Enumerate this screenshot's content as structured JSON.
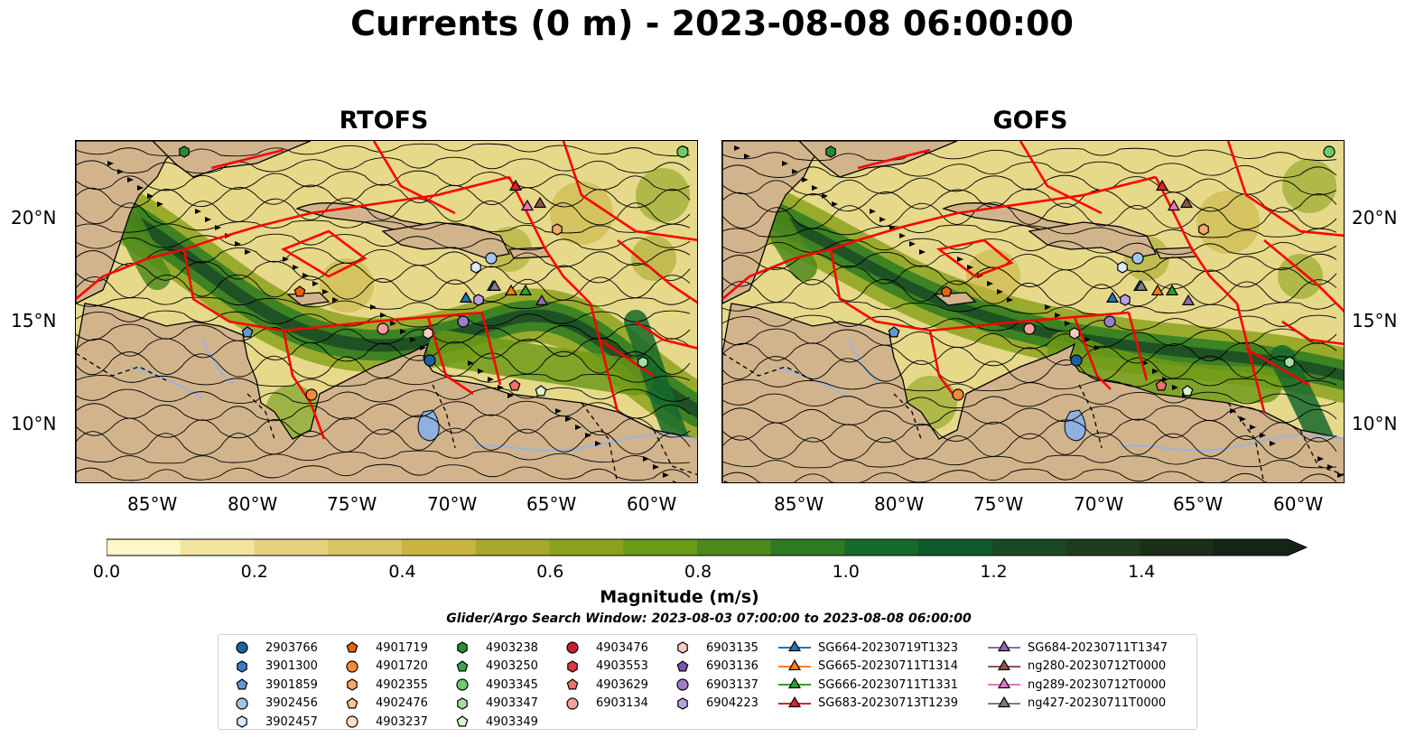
{
  "title": "Currents (0 m) - 2023-08-08 06:00:00",
  "panels": [
    {
      "name": "RTOFS"
    },
    {
      "name": "GOFS"
    }
  ],
  "lat_labels": [
    "20°N",
    "15°N",
    "10°N"
  ],
  "lon_labels": [
    "85°W",
    "80°W",
    "75°W",
    "70°W",
    "65°W",
    "60°W"
  ],
  "colorbar": {
    "label": "Magnitude (m/s)",
    "ticks": [
      "0.0",
      "0.2",
      "0.4",
      "0.6",
      "0.8",
      "1.0",
      "1.2",
      "1.4"
    ],
    "colors": [
      "#fdf6c7",
      "#f3e6a0",
      "#e7d27e",
      "#dbc462",
      "#c9b442",
      "#a9a82b",
      "#8ba21c",
      "#6c9a17",
      "#4c8a1c",
      "#2d7a22",
      "#15692d",
      "#0f5a2c",
      "#194a24",
      "#1f3c1e",
      "#1b2f18",
      "#152515"
    ]
  },
  "colors": {
    "land": "#d2b48c",
    "ocean_base": "#e6d98a",
    "eez": "#ff0000",
    "lake": "#8fb0e0"
  },
  "search_window": "Glider/Argo Search Window: 2023-08-03 07:00:00 to 2023-08-08 06:00:00",
  "legend": [
    [
      {
        "label": "2903766",
        "marker": "circle",
        "color": "#1f5fa8"
      },
      {
        "label": "3901300",
        "marker": "hexagon",
        "color": "#3a7fc0"
      },
      {
        "label": "3901859",
        "marker": "pentagon",
        "color": "#5d9bd5"
      },
      {
        "label": "3902456",
        "marker": "circle",
        "color": "#9dc7ee"
      },
      {
        "label": "3902457",
        "marker": "hexagon",
        "color": "#dbe9f8"
      }
    ],
    [
      {
        "label": "4901719",
        "marker": "pentagon",
        "color": "#e8630c"
      },
      {
        "label": "4901720",
        "marker": "circle",
        "color": "#f58b3a"
      },
      {
        "label": "4902355",
        "marker": "hexagon",
        "color": "#f9a867"
      },
      {
        "label": "4902476",
        "marker": "pentagon",
        "color": "#fbc594"
      },
      {
        "label": "4903237",
        "marker": "circle",
        "color": "#fde0c2"
      }
    ],
    [
      {
        "label": "4903238",
        "marker": "hexagon",
        "color": "#2b8a3a"
      },
      {
        "label": "4903250",
        "marker": "pentagon",
        "color": "#3fa34d"
      },
      {
        "label": "4903345",
        "marker": "circle",
        "color": "#6ccb6c"
      },
      {
        "label": "4903347",
        "marker": "hexagon",
        "color": "#a6e0a0"
      },
      {
        "label": "4903349",
        "marker": "pentagon",
        "color": "#d7f3cf"
      }
    ],
    [
      {
        "label": "4903476",
        "marker": "circle",
        "color": "#c8202a"
      },
      {
        "label": "4903553",
        "marker": "hexagon",
        "color": "#de3a3a"
      },
      {
        "label": "4903629",
        "marker": "pentagon",
        "color": "#f07070"
      },
      {
        "label": "6903134",
        "marker": "circle",
        "color": "#f79f9f"
      }
    ],
    [
      {
        "label": "6903135",
        "marker": "hexagon",
        "color": "#fbcaca"
      },
      {
        "label": "6903136",
        "marker": "pentagon",
        "color": "#7b56b0"
      },
      {
        "label": "6903137",
        "marker": "circle",
        "color": "#9c7ccc"
      },
      {
        "label": "6904223",
        "marker": "hexagon",
        "color": "#b9a0de"
      }
    ],
    [
      {
        "label": "SG664-20230719T1323",
        "marker": "triangle",
        "color": "#1f77b4"
      },
      {
        "label": "SG665-20230711T1314",
        "marker": "triangle",
        "color": "#ff7f0e"
      },
      {
        "label": "SG666-20230711T1331",
        "marker": "triangle",
        "color": "#2ca02c"
      },
      {
        "label": "SG683-20230713T1239",
        "marker": "triangle",
        "color": "#d62728"
      }
    ],
    [
      {
        "label": "SG684-20230711T1347",
        "marker": "triangle",
        "color": "#9467bd"
      },
      {
        "label": "ng280-20230712T0000",
        "marker": "triangle",
        "color": "#8c564b"
      },
      {
        "label": "ng289-20230712T0000",
        "marker": "triangle",
        "color": "#e377c2"
      },
      {
        "label": "ng427-20230711T0000",
        "marker": "triangle",
        "color": "#7f7f7f"
      }
    ]
  ]
}
